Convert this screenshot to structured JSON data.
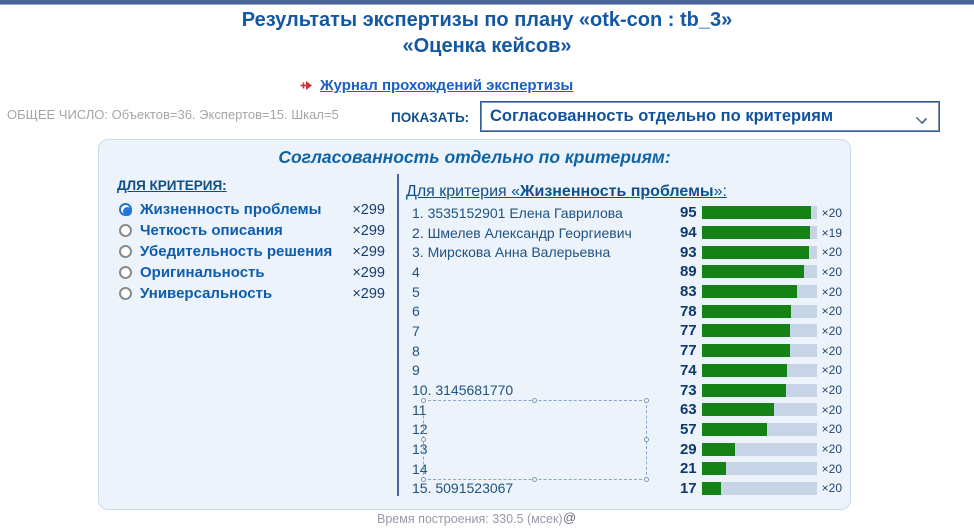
{
  "header": {
    "title_line1": "Результаты экспертизы по плану «otk-con : tb_3»",
    "title_line2": "«Оценка кейсов»",
    "journal_link": "Журнал прохождений экспертизы",
    "totals": "ОБЩЕЕ ЧИСЛО: Объектов=36. Экспертов=15. Шкал=5",
    "show_label": "ПОКАЗАТЬ:",
    "show_select_value": "Согласованность отдельно по критериям"
  },
  "panel": {
    "title": "Согласованность отдельно по критериям:",
    "criteria_heading": "ДЛЯ КРИТЕРИЯ:",
    "criteria": [
      {
        "label": "Жизненность проблемы",
        "count": "×299",
        "selected": true
      },
      {
        "label": "Четкость описания",
        "count": "×299",
        "selected": false
      },
      {
        "label": "Убедительность решения",
        "count": "×299",
        "selected": false
      },
      {
        "label": "Оригинальность",
        "count": "×299",
        "selected": false
      },
      {
        "label": "Универсальность",
        "count": "×299",
        "selected": false
      }
    ],
    "detail": {
      "heading_prefix": "Для критерия «",
      "heading_criterion": "Жизненность проблемы",
      "heading_suffix": "»:",
      "rows": [
        {
          "label": "1. 3535152901 Елена Гаврилова",
          "value": 95,
          "count": "×20"
        },
        {
          "label": "2. Шмелев Александр Георгиевич",
          "value": 94,
          "count": "×19"
        },
        {
          "label": "3. Мирскова Анна Валерьевна",
          "value": 93,
          "count": "×20"
        },
        {
          "label": "4",
          "value": 89,
          "count": "×20"
        },
        {
          "label": "5",
          "value": 83,
          "count": "×20"
        },
        {
          "label": "6",
          "value": 78,
          "count": "×20"
        },
        {
          "label": "7",
          "value": 77,
          "count": "×20"
        },
        {
          "label": "8",
          "value": 77,
          "count": "×20"
        },
        {
          "label": "9",
          "value": 74,
          "count": "×20"
        },
        {
          "label": "10. 3145681770",
          "value": 73,
          "count": "×20"
        },
        {
          "label": "11",
          "value": 63,
          "count": "×20"
        },
        {
          "label": "12",
          "value": 57,
          "count": "×20"
        },
        {
          "label": "13",
          "value": 29,
          "count": "×20"
        },
        {
          "label": "14",
          "value": 21,
          "count": "×20"
        },
        {
          "label": "15. 5091523067",
          "value": 17,
          "count": "×20"
        }
      ]
    }
  },
  "footer": {
    "build_time": "Время построения: 330.5 (мсек)",
    "at_symbol": "@"
  },
  "chart_data": {
    "type": "bar",
    "orientation": "horizontal",
    "title": "Для критерия «Жизненность проблемы»",
    "categories": [
      "1. 3535152901 Елена Гаврилова",
      "2. Шмелев Александр Георгиевич",
      "3. Мирскова Анна Валерьевна",
      "4",
      "5",
      "6",
      "7",
      "8",
      "9",
      "10. 3145681770",
      "11",
      "12",
      "13",
      "14",
      "15. 5091523067"
    ],
    "values": [
      95,
      94,
      93,
      89,
      83,
      78,
      77,
      77,
      74,
      73,
      63,
      57,
      29,
      21,
      17
    ],
    "counts": [
      "×20",
      "×19",
      "×20",
      "×20",
      "×20",
      "×20",
      "×20",
      "×20",
      "×20",
      "×20",
      "×20",
      "×20",
      "×20",
      "×20",
      "×20"
    ],
    "xlim": [
      0,
      100
    ],
    "bar_color": "#148214",
    "track_color": "#c7d4e6"
  },
  "colors": {
    "topbar": "#4a6598",
    "title_blue": "#1457a2",
    "link_blue": "#1b5fc6",
    "accent_blue": "#0d5cad",
    "bar_green": "#148214",
    "bar_track": "#c7d4e6",
    "panel_bg": "#ecf3fb",
    "red_arrow": "#c53535"
  }
}
